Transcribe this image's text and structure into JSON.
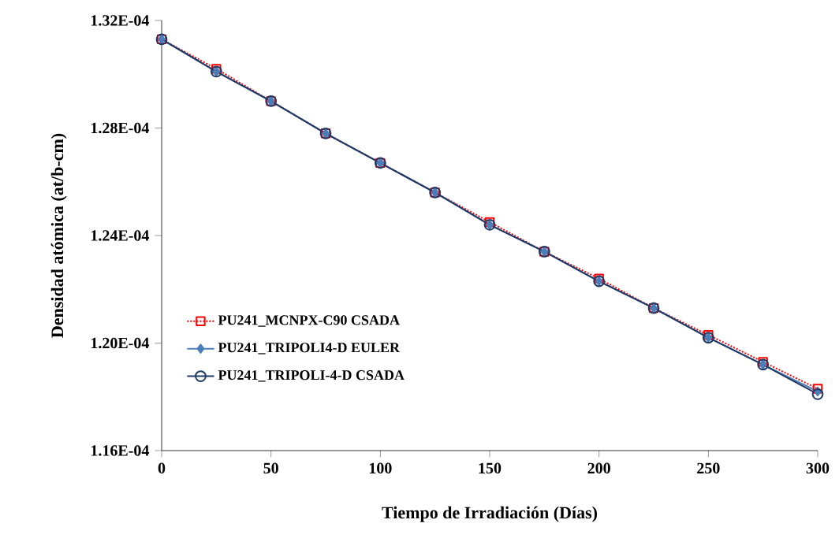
{
  "chart_data": {
    "type": "line",
    "xlabel": "Tiempo de Irradiación (Días)",
    "ylabel": "Densidad atómica (at/b-cm)",
    "x": [
      0,
      25,
      50,
      75,
      100,
      125,
      150,
      175,
      200,
      225,
      250,
      275,
      300
    ],
    "series": [
      {
        "name": "PU241_MCNPX-C90 CSADA",
        "color": "#ff0000",
        "marker": "square",
        "line_style": "dotted",
        "values": [
          0.0001313,
          0.0001302,
          0.000129,
          0.0001278,
          0.0001267,
          0.0001256,
          0.0001245,
          0.0001234,
          0.0001224,
          0.0001213,
          0.0001203,
          0.0001193,
          0.0001183
        ]
      },
      {
        "name": "PU241_TRIPOLI4-D EULER",
        "color": "#4a7ebb",
        "marker": "diamond",
        "line_style": "solid",
        "values": [
          0.0001313,
          0.0001301,
          0.000129,
          0.0001278,
          0.0001267,
          0.0001256,
          0.0001244,
          0.0001234,
          0.0001223,
          0.0001213,
          0.0001202,
          0.0001192,
          0.0001182
        ]
      },
      {
        "name": "PU241_TRIPOLI-4-D CSADA",
        "color": "#1f3864",
        "marker": "circle",
        "line_style": "solid",
        "values": [
          0.0001313,
          0.0001301,
          0.000129,
          0.0001278,
          0.0001267,
          0.0001256,
          0.0001244,
          0.0001234,
          0.0001223,
          0.0001213,
          0.0001202,
          0.0001192,
          0.0001181
        ]
      }
    ],
    "xlim": [
      0,
      300
    ],
    "xticks": [
      0,
      50,
      100,
      150,
      200,
      250,
      300
    ],
    "ylim": [
      0.000116,
      0.000132
    ],
    "yticks": [
      {
        "value": 0.000116,
        "label": "1.16E-04"
      },
      {
        "value": 0.00012,
        "label": "1.20E-04"
      },
      {
        "value": 0.000124,
        "label": "1.24E-04"
      },
      {
        "value": 0.000128,
        "label": "1.28E-04"
      },
      {
        "value": 0.000132,
        "label": "1.32E-04"
      }
    ],
    "grid": false,
    "legend": "left"
  }
}
